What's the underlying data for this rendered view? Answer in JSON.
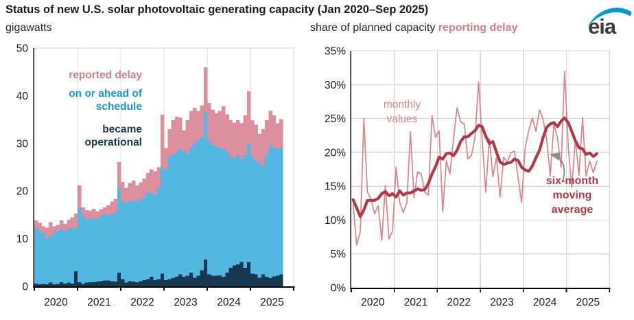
{
  "header": {
    "title": "Status of new U.S. solar photovoltaic generating capacity (Jan 2020–Sep 2025)",
    "left_unit_label": "gigawatts",
    "right_subtitle_prefix": "share of planned capacity ",
    "right_subtitle_highlight": "reporting delay",
    "logo_text": "eia",
    "logo_swoosh_color": "#0096d4"
  },
  "left_legend": {
    "delay_label": "reported delay",
    "ahead_label_line1": "on or ahead of",
    "ahead_label_line2": "schedule",
    "operational_label_line1": "became",
    "operational_label_line2": "operational"
  },
  "right_annotations": {
    "monthly_line1": "monthly",
    "monthly_line2": "values",
    "ma_line1": "six-month",
    "ma_line2": "moving",
    "ma_line3": "average"
  },
  "colors": {
    "bar_delay": "#dd8f9e",
    "bar_ahead": "#54b6e3",
    "bar_operational": "#16394f",
    "line_monthly": "#d9838f",
    "line_moving_avg": "#ae3b49",
    "grid": "#d8d8d8",
    "axis": "#000000",
    "tick_text": "#1a1a1a",
    "arrow": "#8c8c8c"
  },
  "chart_data": [
    {
      "type": "bar",
      "stacked": true,
      "title": "gigawatts",
      "months_start": "2020-01",
      "months_end": "2025-09",
      "year_labels": [
        "2020",
        "2021",
        "2022",
        "2023",
        "2024",
        "2025"
      ],
      "y_ticks": [
        0,
        10,
        20,
        30,
        40,
        50
      ],
      "y_tick_labels": [
        "0",
        "10",
        "20",
        "30",
        "40",
        "50"
      ],
      "ylim": [
        0,
        50
      ],
      "grid": "vertical-year-lines-only",
      "series": [
        {
          "name": "became operational",
          "color": "#16394f",
          "values": [
            0.6,
            0.4,
            0.5,
            0.4,
            0.8,
            0.4,
            0.5,
            0.9,
            0.6,
            0.8,
            0.6,
            3.2,
            0.9,
            0.5,
            0.8,
            0.9,
            0.9,
            1.0,
            1.1,
            1.2,
            1.2,
            1.1,
            1.0,
            2.9,
            1.5,
            0.8,
            1.1,
            1.0,
            0.9,
            1.1,
            1.3,
            1.5,
            2.0,
            1.3,
            1.5,
            2.7,
            1.3,
            1.5,
            1.7,
            2.0,
            2.5,
            2.0,
            2.2,
            2.9,
            1.8,
            2.2,
            3.4,
            5.6,
            2.5,
            2.2,
            2.2,
            2.3,
            2.0,
            2.9,
            3.9,
            4.4,
            4.6,
            5.1,
            3.9,
            5.1,
            2.7,
            2.5,
            1.8,
            2.5,
            2.0,
            1.7,
            2.1,
            2.2,
            2.5
          ]
        },
        {
          "name": "on or ahead of schedule",
          "color": "#54b6e3",
          "values": [
            11.6,
            11.2,
            10.7,
            9.6,
            9.8,
            10.9,
            11.2,
            11.1,
            11.1,
            11.3,
            11.7,
            8.9,
            15.6,
            14.2,
            13.2,
            13.2,
            13.4,
            13.1,
            13.8,
            13.9,
            13.8,
            14.1,
            14.4,
            17.9,
            16.3,
            16.8,
            16.7,
            17.1,
            17.0,
            17.2,
            17.3,
            18.3,
            17.5,
            17.8,
            19.2,
            22.3,
            23.2,
            25.7,
            26.0,
            26.2,
            26.4,
            26.4,
            25.7,
            26.2,
            28.3,
            28.4,
            27.9,
            31.0,
            28.1,
            27.4,
            27.2,
            26.8,
            26.9,
            25.3,
            23.3,
            22.3,
            22.9,
            21.4,
            23.8,
            25.0,
            24.5,
            23.8,
            24.0,
            22.8,
            25.7,
            27.9,
            27.0,
            26.7,
            26.4
          ]
        },
        {
          "name": "reported delay",
          "color": "#dd8f9e",
          "values": [
            1.6,
            1.7,
            1.4,
            2.3,
            2.9,
            1.3,
            1.2,
            1.8,
            1.4,
            1.9,
            2.2,
            3.2,
            4.7,
            1.9,
            2.0,
            1.8,
            2.0,
            1.7,
            1.3,
            1.5,
            2.0,
            2.6,
            3.0,
            5.3,
            4.1,
            3.1,
            3.9,
            4.1,
            3.3,
            3.5,
            4.0,
            4.0,
            5.1,
            5.0,
            4.3,
            11.0,
            4.5,
            5.8,
            7.2,
            7.4,
            6.5,
            4.3,
            7.0,
            7.7,
            7.4,
            6.2,
            6.7,
            9.4,
            7.9,
            7.5,
            6.9,
            7.7,
            8.9,
            7.9,
            7.7,
            7.7,
            7.4,
            7.7,
            8.2,
            10.8,
            7.7,
            7.6,
            6.2,
            7.7,
            7.2,
            7.2,
            6.8,
            5.3,
            6.2
          ]
        }
      ]
    },
    {
      "type": "line",
      "title": "share of planned capacity reporting delay",
      "months_start": "2020-01",
      "months_end": "2025-09",
      "year_labels": [
        "2020",
        "2021",
        "2022",
        "2023",
        "2024",
        "2025"
      ],
      "y_ticks": [
        0,
        5,
        10,
        15,
        20,
        25,
        30,
        35
      ],
      "y_tick_labels": [
        "0%",
        "5%",
        "10%",
        "15%",
        "20%",
        "25%",
        "30%",
        "35%"
      ],
      "ylim": [
        0,
        35
      ],
      "grid": "horizontal-and-vertical",
      "series": [
        {
          "name": "monthly values",
          "color": "#d9838f",
          "stroke_width": 1.7,
          "values": [
            12.4,
            6.3,
            8.3,
            25.0,
            14.1,
            13.1,
            10.9,
            12.1,
            7.0,
            15.1,
            7.2,
            8.4,
            17.8,
            12.6,
            11.1,
            12.6,
            23.1,
            13.3,
            17.1,
            16.8,
            14.1,
            13.7,
            25.4,
            22.2,
            23.2,
            11.2,
            18.8,
            16.8,
            21.9,
            26.6,
            24.5,
            24.2,
            19.0,
            19.5,
            22.2,
            30.4,
            22.0,
            14.1,
            22.0,
            16.4,
            19.3,
            13.4,
            19.3,
            18.5,
            19.9,
            20.2,
            16.3,
            12.6,
            20.7,
            23.2,
            25.1,
            23.1,
            26.3,
            24.9,
            21.9,
            16.5,
            24.1,
            22.2,
            17.8,
            32.0,
            20.9,
            14.8,
            21.9,
            16.6,
            25.1,
            16.5,
            18.7,
            17.0,
            18.7
          ]
        },
        {
          "name": "six-month moving average",
          "color": "#ae3b49",
          "stroke_width": 4.2,
          "values": [
            13.0,
            11.8,
            10.5,
            11.5,
            12.9,
            12.9,
            12.9,
            13.2,
            13.9,
            14.2,
            13.6,
            13.9,
            13.4,
            14.3,
            13.7,
            14.0,
            14.0,
            14.3,
            14.6,
            14.4,
            14.5,
            15.4,
            16.8,
            17.9,
            19.3,
            19.0,
            19.8,
            19.9,
            19.5,
            20.3,
            21.6,
            22.3,
            22.3,
            22.8,
            23.2,
            24.0,
            23.8,
            22.4,
            21.3,
            21.6,
            20.0,
            18.6,
            18.2,
            18.4,
            18.5,
            19.0,
            18.8,
            17.8,
            17.4,
            17.2,
            18.0,
            19.2,
            20.3,
            22.2,
            23.7,
            24.2,
            24.4,
            23.8,
            24.6,
            25.1,
            24.4,
            23.1,
            21.7,
            20.7,
            20.5,
            19.7,
            19.9,
            19.4,
            19.8
          ]
        }
      ]
    }
  ]
}
